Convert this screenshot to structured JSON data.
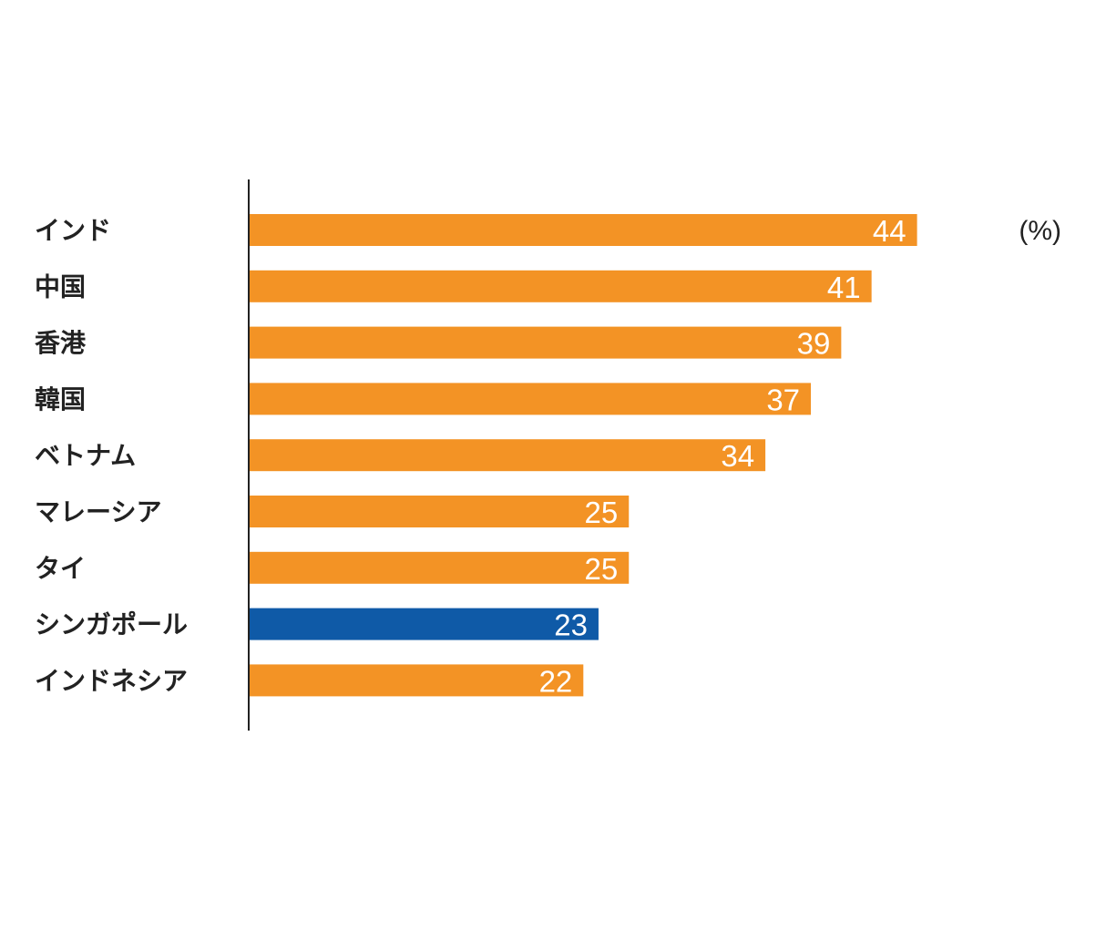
{
  "chart_data": {
    "type": "bar",
    "orientation": "horizontal",
    "unit": "(%)",
    "categories": [
      "インド",
      "中国",
      "香港",
      "韓国",
      "ベトナム",
      "マレーシア",
      "タイ",
      "シンガポール",
      "インドネシア"
    ],
    "values": [
      44,
      41,
      39,
      37,
      34,
      25,
      25,
      23,
      22
    ],
    "highlight_index": 7,
    "colors": {
      "bar": "#f39325",
      "highlight_bar": "#0f5aa7",
      "axis": "#222222",
      "value_text": "#ffffff",
      "category_text": "#222222"
    },
    "xlim": [
      0,
      50
    ],
    "grid": false,
    "legend": "none"
  }
}
